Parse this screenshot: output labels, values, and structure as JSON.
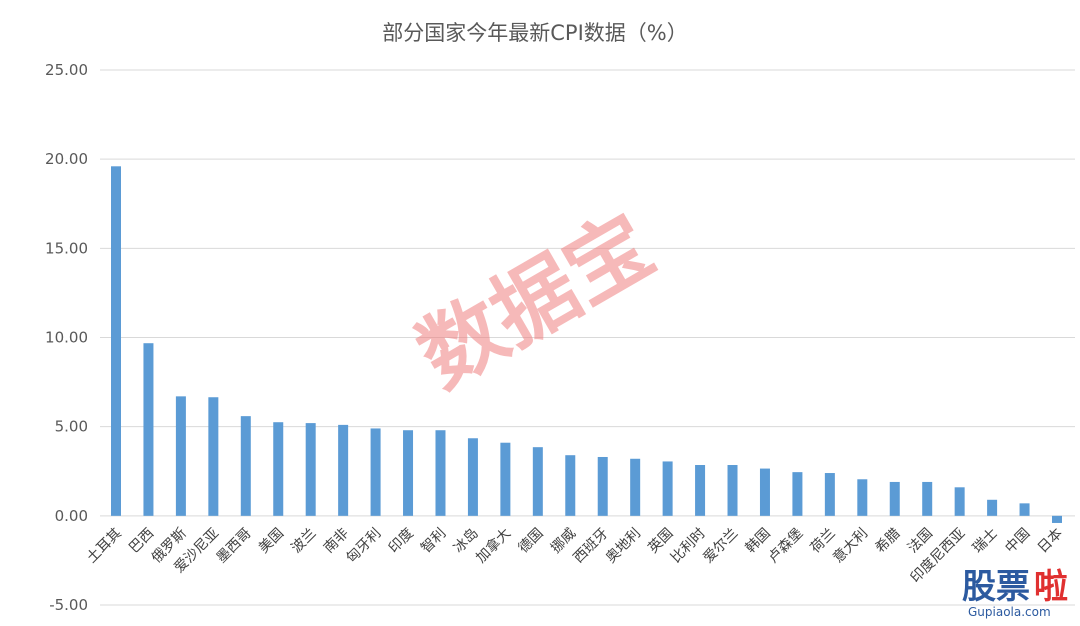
{
  "chart_data": {
    "type": "bar",
    "title": "部分国家今年最新CPI数据（%）",
    "categories": [
      "土耳其",
      "巴西",
      "俄罗斯",
      "爱沙尼亚",
      "墨西哥",
      "美国",
      "波兰",
      "南非",
      "匈牙利",
      "印度",
      "智利",
      "冰岛",
      "加拿大",
      "德国",
      "挪威",
      "西班牙",
      "奥地利",
      "英国",
      "比利时",
      "爱尔兰",
      "韩国",
      "卢森堡",
      "荷兰",
      "意大利",
      "希腊",
      "法国",
      "印度尼西亚",
      "瑞士",
      "中国",
      "日本"
    ],
    "values": [
      19.6,
      9.68,
      6.7,
      6.65,
      5.59,
      5.25,
      5.2,
      5.1,
      4.9,
      4.8,
      4.8,
      4.35,
      4.1,
      3.85,
      3.4,
      3.3,
      3.2,
      3.05,
      2.85,
      2.85,
      2.65,
      2.45,
      2.4,
      2.05,
      1.9,
      1.9,
      1.6,
      0.9,
      0.7,
      -0.4
    ],
    "yticks": [
      "25.00",
      "20.00",
      "15.00",
      "10.00",
      "5.00",
      "0.00",
      "-5.00"
    ],
    "ylim": [
      -5,
      25
    ],
    "grid": true,
    "bar_color": "#5b9bd5",
    "grid_color": "#d9d9d9"
  },
  "watermark": "数据宝",
  "logo": {
    "main": "股票",
    "accent": "啦",
    "sub": "Gupiaola.com"
  }
}
